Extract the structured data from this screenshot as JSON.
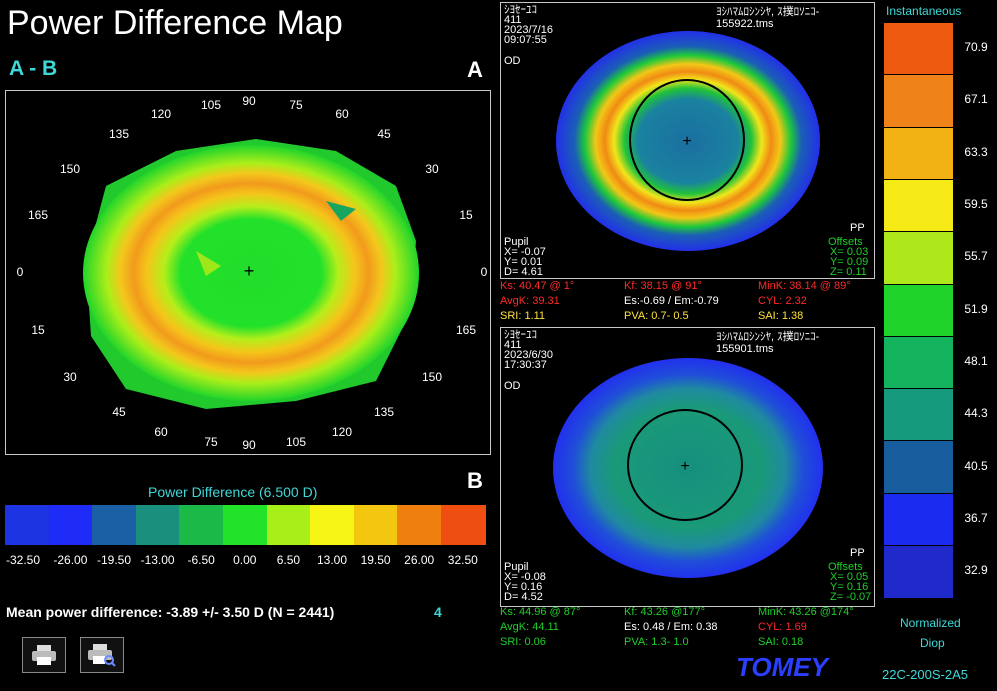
{
  "header": {
    "title": "Power Difference Map",
    "subtitle": "A - B",
    "label_a": "A",
    "label_b": "B"
  },
  "left_map": {
    "angles_top": [
      "105",
      "90",
      "75",
      "120",
      "60",
      "135",
      "45",
      "150",
      "30",
      "165",
      "15",
      "0",
      "0",
      "15",
      "165",
      "30",
      "150",
      "45",
      "135",
      "60",
      "120",
      "75",
      "90",
      "105"
    ]
  },
  "legend": {
    "title": "Power Difference (6.500 D)",
    "colors": [
      "#1d34e3",
      "#1f2cf7",
      "#1b5fa5",
      "#1b8f7d",
      "#1bb948",
      "#22e32a",
      "#a8ee18",
      "#f6f516",
      "#f3c60f",
      "#ef8010",
      "#ee4e0f"
    ],
    "labels": [
      "-32.50",
      "-26.00",
      "-19.50",
      "-13.00",
      "-6.50",
      "0.00",
      "6.50",
      "13.00",
      "19.50",
      "26.00",
      "32.50"
    ]
  },
  "summary": {
    "mean_text": "Mean power difference:  -3.89 +/-  3.50 D (N = 2441)",
    "count": "4"
  },
  "toolbar": {
    "print_icon": "printer-icon",
    "preview_icon": "print-preview-icon"
  },
  "map_a": {
    "header_left": [
      "ｼﾖｾｰﾕｺ",
      "411",
      "2023/7/16",
      "09:07:55"
    ],
    "header_right": [
      "ﾖｼﾊﾏﾑﾛｼﾝｼﾔ, ｽ撲ﾛｿﾆｺ-",
      "155922.tms"
    ],
    "eye": "OD",
    "pp": "PP",
    "pupil": {
      "label": "Pupil",
      "x": "X= -0.07",
      "y": "Y= 0.01",
      "d": "D= 4.61"
    },
    "offsets": {
      "label": "Offsets",
      "x": "X= 0.03",
      "y": "Y= 0.09",
      "z": "Z= 0.11"
    },
    "row1": [
      "Ks: 40.47 @  1°",
      "Kf: 38.15 @ 91°",
      "MinK: 38.14 @ 89°"
    ],
    "row2": [
      "AvgK: 39.31",
      "Es:-0.69 / Em:-0.79",
      "CYL: 2.32"
    ],
    "row3": [
      "SRI: 1.11",
      "PVA:  0.7-  0.5",
      "SAI: 1.38"
    ]
  },
  "map_b": {
    "header_left": [
      "ｼﾖｾｰﾕｺ",
      "411",
      "2023/6/30",
      "17:30:37"
    ],
    "header_right": [
      "ﾖｼﾊﾏﾑﾛｼﾝｼﾔ, ｽ撲ﾛｿﾆｺ-",
      "155901.tms"
    ],
    "eye": "OD",
    "pp": "PP",
    "pupil": {
      "label": "Pupil",
      "x": "X= -0.08",
      "y": "Y= 0.16",
      "d": "D= 4.52"
    },
    "offsets": {
      "label": "Offsets",
      "x": "X= 0.05",
      "y": "Y= 0.16",
      "z": "Z= -0.07"
    },
    "row1": [
      "Ks: 44.96 @ 87°",
      "Kf: 43.26 @177°",
      "MinK: 43.26 @174°"
    ],
    "row2": [
      "AvgK: 44.11",
      "Es: 0.48 / Em: 0.38",
      "CYL: 1.69"
    ],
    "row3": [
      "SRI: 0.06",
      "PVA:  1.3-  1.0",
      "SAI: 0.18"
    ]
  },
  "map_angles": [
    "105",
    "90",
    "75",
    "120",
    "60",
    "135",
    "45",
    "150",
    "30",
    "165",
    "15",
    "0",
    "0",
    "15",
    "165",
    "30",
    "150",
    "45",
    "135",
    "60",
    "120",
    "75",
    "90",
    "105"
  ],
  "scale": {
    "title": "Instantaneous",
    "colors": [
      "#ee5a10",
      "#f0821a",
      "#f3b214",
      "#f5ea16",
      "#aee81a",
      "#1fd32b",
      "#14b35d",
      "#159a7e",
      "#185e9f",
      "#1b2cf0",
      "#2029c9"
    ],
    "labels": [
      "70.9",
      "67.1",
      "63.3",
      "59.5",
      "55.7",
      "51.9",
      "48.1",
      "44.3",
      "40.5",
      "36.7",
      "32.9"
    ],
    "footer1": "Normalized",
    "footer2": "Diop"
  },
  "brand": {
    "logo": "TOMEY",
    "code": "22C-200S-2A5"
  }
}
